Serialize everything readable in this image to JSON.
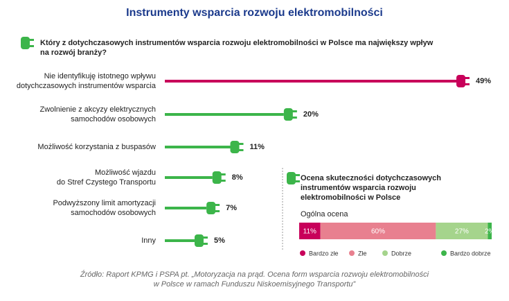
{
  "title": "Instrumenty wsparcia rozwoju elektromobilności",
  "source": "Źródło: Raport KPMG i PSPA pt. „Motoryzacja na prąd. Ocena form wsparcia rozwoju elektromobilności\nw Polsce w ramach Funduszu Niskoemisyjnego Transportu”",
  "chart_data": [
    {
      "type": "bar",
      "title": "Który z dotychczasowych instrumentów wsparcia rozwoju elektromobilności w Polsce ma największy wpływ\nna rozwój branży?",
      "categories": [
        "Nie identyfikuję istotnego wpływu\ndotychczasowych instrumentów wsparcia",
        "Zwolnienie z akcyzy elektrycznych\nsamochodów osobowych",
        "Możliwość korzystania z buspasów",
        "Możliwość wjazdu\ndo Stref Czystego Transportu",
        "Podwyższony limit amortyzacji\nsamochodów osobowych",
        "Inny"
      ],
      "values": [
        49,
        20,
        11,
        8,
        7,
        5
      ],
      "value_labels": [
        "49%",
        "20%",
        "11%",
        "8%",
        "7%",
        "5%"
      ],
      "colors": [
        "#c8005a",
        "#3cb54a",
        "#3cb54a",
        "#3cb54a",
        "#3cb54a",
        "#3cb54a"
      ]
    },
    {
      "type": "stacked_bar",
      "title": "Ocena skuteczności dotychczasowych\ninstrumentów wsparcia rozwoju\nelektromobilności w Polsce",
      "categories": [
        "Ogólna ocena"
      ],
      "series": [
        {
          "name": "Bardzo złe",
          "color": "#c8005a",
          "values": [
            11
          ],
          "value_labels": [
            "11%"
          ]
        },
        {
          "name": "Złe",
          "color": "#e8808f",
          "values": [
            60
          ],
          "value_labels": [
            "60%"
          ]
        },
        {
          "name": "Dobrze",
          "color": "#a5d48c",
          "values": [
            27
          ],
          "value_labels": [
            "27%"
          ]
        },
        {
          "name": "Bardzo dobrze",
          "color": "#3cb54a",
          "values": [
            2
          ],
          "value_labels": [
            "2%"
          ]
        }
      ]
    }
  ]
}
